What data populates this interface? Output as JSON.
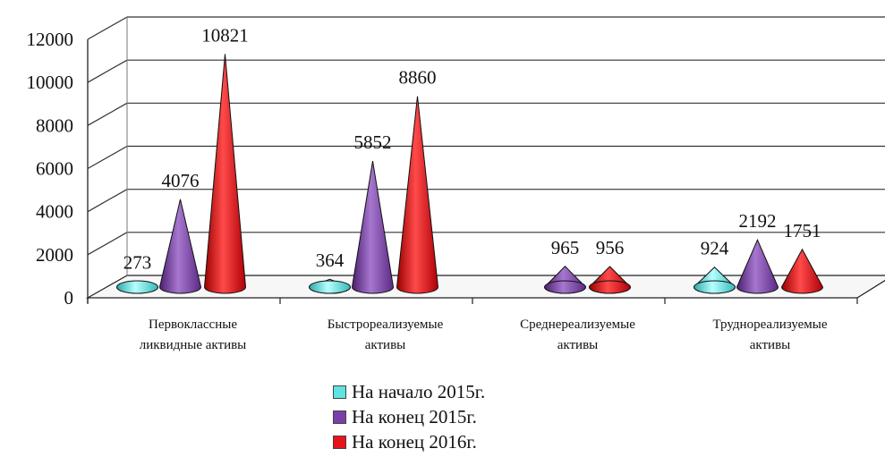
{
  "chart_data": {
    "type": "bar",
    "title": "",
    "xlabel": "",
    "ylabel": "",
    "ylim": [
      0,
      12000
    ],
    "y_ticks": [
      "0",
      "2000",
      "4000",
      "6000",
      "8000",
      "10000",
      "12000"
    ],
    "grid": true,
    "legend_position": "bottom",
    "categories": [
      [
        "Первоклассные",
        "ликвидные активы"
      ],
      [
        "Быстрореализуемые",
        "активы"
      ],
      [
        "Среднереализуемые",
        "активы"
      ],
      [
        "Труднореализуемые",
        "активы"
      ]
    ],
    "series": [
      {
        "name": "На начало 2015г.",
        "color": "#5fe3e3",
        "values": [
          273,
          364,
          0,
          924
        ],
        "labels": [
          "273",
          "364",
          "",
          "924"
        ]
      },
      {
        "name": "На конец 2015г.",
        "color": "#7b3fa8",
        "values": [
          4076,
          5852,
          965,
          2192
        ],
        "labels": [
          "4076",
          "5852",
          "965",
          "2192"
        ]
      },
      {
        "name": "На конец 2016г.",
        "color": "#e8141c",
        "values": [
          10821,
          8860,
          956,
          1751
        ],
        "labels": [
          "10821",
          "8860",
          "956",
          "1751"
        ]
      }
    ]
  }
}
